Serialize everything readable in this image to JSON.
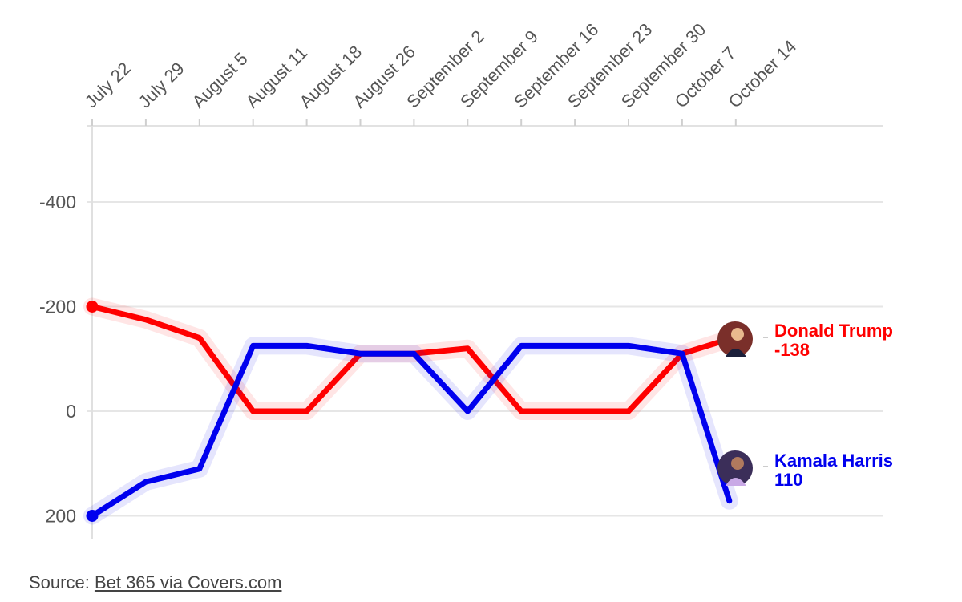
{
  "chart_data": {
    "type": "line",
    "x": [
      "July 22",
      "July 29",
      "August 5",
      "August 11",
      "August 18",
      "August 26",
      "September 2",
      "September 9",
      "September 16",
      "September 23",
      "September 30",
      "October 7",
      "October 14"
    ],
    "y_ticks": [
      -400,
      -200,
      0,
      200
    ],
    "y_tick_labels": [
      "-400",
      "-200",
      "0",
      "200"
    ],
    "ylim": [
      -550,
      250
    ],
    "y_inverted": true,
    "grid": true,
    "series": [
      {
        "name": "Donald Trump",
        "value_label": "-138",
        "color": "#ff0000",
        "avatar": "trump-photo-avatar",
        "values": [
          -200,
          -175,
          -140,
          0,
          0,
          -110,
          -110,
          -120,
          0,
          0,
          0,
          -110,
          -138
        ]
      },
      {
        "name": "Kamala Harris",
        "value_label": "110",
        "color": "#0000ee",
        "avatar": "harris-photo-avatar",
        "values": [
          200,
          135,
          110,
          -125,
          -125,
          -110,
          -110,
          0,
          -125,
          -125,
          -125,
          -110,
          110
        ]
      }
    ]
  },
  "source": {
    "prefix": "Source: ",
    "link_text": "Bet 365 via Covers.com"
  }
}
